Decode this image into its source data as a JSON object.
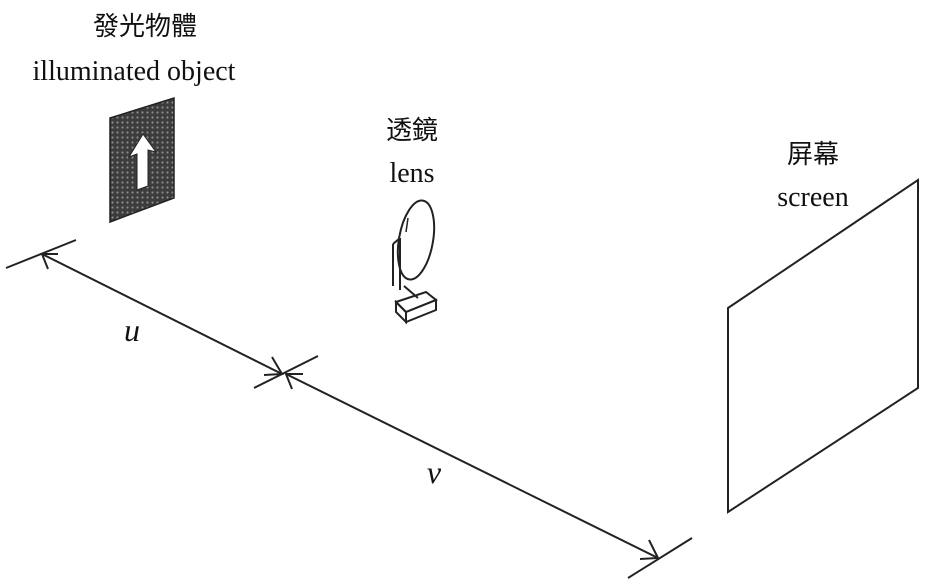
{
  "labels": {
    "object_zh": "發光物體",
    "object_en": "illuminated object",
    "lens_zh": "透鏡",
    "lens_en": "lens",
    "screen_zh": "屏幕",
    "screen_en": "screen",
    "u": "u",
    "v": "v"
  },
  "colors": {
    "ink": "#111111",
    "object_fill": "#4a4a4a",
    "arrow_fill": "#ffffff",
    "background": "#ffffff"
  }
}
